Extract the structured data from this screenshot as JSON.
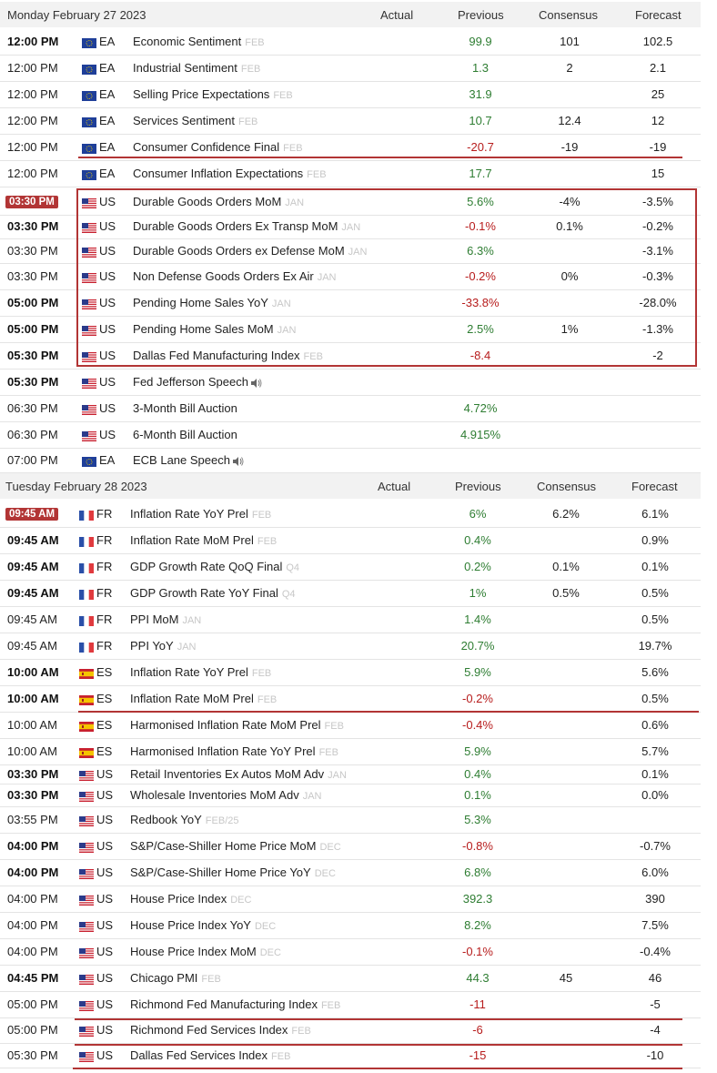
{
  "colors": {
    "positive": "#2e7d32",
    "negative": "#b71c1c",
    "highlight": "#b23535"
  },
  "days": [
    {
      "date": "Monday February 27 2023",
      "columns": {
        "actual": "Actual",
        "previous": "Previous",
        "consensus": "Consensus",
        "forecast": "Forecast"
      },
      "rows": [
        {
          "time": "12:00 PM",
          "bold": true,
          "country": "EA",
          "event": "Economic Sentiment",
          "ref": "FEB",
          "previous": "99.9",
          "prev_tone": "pos",
          "consensus": "101",
          "forecast": "102.5"
        },
        {
          "time": "12:00 PM",
          "country": "EA",
          "event": "Industrial Sentiment",
          "ref": "FEB",
          "previous": "1.3",
          "prev_tone": "pos",
          "consensus": "2",
          "forecast": "2.1"
        },
        {
          "time": "12:00 PM",
          "country": "EA",
          "event": "Selling Price Expectations",
          "ref": "FEB",
          "previous": "31.9",
          "prev_tone": "pos",
          "consensus": "",
          "forecast": "25"
        },
        {
          "time": "12:00 PM",
          "country": "EA",
          "event": "Services Sentiment",
          "ref": "FEB",
          "previous": "10.7",
          "prev_tone": "pos",
          "consensus": "12.4",
          "forecast": "12"
        },
        {
          "time": "12:00 PM",
          "country": "EA",
          "event": "Consumer Confidence Final",
          "ref": "FEB",
          "previous": "-20.7",
          "prev_tone": "neg",
          "consensus": "-19",
          "forecast": "-19"
        },
        {
          "time": "12:00 PM",
          "country": "EA",
          "event": "Consumer Inflation Expectations",
          "ref": "FEB",
          "previous": "17.7",
          "prev_tone": "pos",
          "consensus": "",
          "forecast": "15"
        },
        {
          "time": "03:30 PM",
          "badge": true,
          "country": "US",
          "event": "Durable Goods Orders MoM",
          "ref": "JAN",
          "previous": "5.6%",
          "prev_tone": "pos",
          "consensus": "-4%",
          "forecast": "-3.5%"
        },
        {
          "time": "03:30 PM",
          "bold": true,
          "country": "US",
          "event": "Durable Goods Orders Ex Transp MoM",
          "ref": "JAN",
          "previous": "-0.1%",
          "prev_tone": "neg",
          "consensus": "0.1%",
          "forecast": "-0.2%"
        },
        {
          "time": "03:30 PM",
          "country": "US",
          "event": "Durable Goods Orders ex Defense MoM",
          "ref": "JAN",
          "previous": "6.3%",
          "prev_tone": "pos",
          "consensus": "",
          "forecast": "-3.1%"
        },
        {
          "time": "03:30 PM",
          "country": "US",
          "event": "Non Defense Goods Orders Ex Air",
          "ref": "JAN",
          "previous": "-0.2%",
          "prev_tone": "neg",
          "consensus": "0%",
          "forecast": "-0.3%"
        },
        {
          "time": "05:00 PM",
          "bold": true,
          "country": "US",
          "event": "Pending Home Sales YoY",
          "ref": "JAN",
          "previous": "-33.8%",
          "prev_tone": "neg",
          "consensus": "",
          "forecast": "-28.0%"
        },
        {
          "time": "05:00 PM",
          "bold": true,
          "country": "US",
          "event": "Pending Home Sales MoM",
          "ref": "JAN",
          "previous": "2.5%",
          "prev_tone": "pos",
          "consensus": "1%",
          "forecast": "-1.3%"
        },
        {
          "time": "05:30 PM",
          "bold": true,
          "country": "US",
          "event": "Dallas Fed Manufacturing Index",
          "ref": "FEB",
          "previous": "-8.4",
          "prev_tone": "neg",
          "consensus": "",
          "forecast": "-2"
        },
        {
          "time": "05:30 PM",
          "bold": true,
          "country": "US",
          "event": "Fed Jefferson Speech",
          "ref": "",
          "speech": true,
          "previous": "",
          "prev_tone": "",
          "consensus": "",
          "forecast": ""
        },
        {
          "time": "06:30 PM",
          "country": "US",
          "event": "3-Month Bill Auction",
          "ref": "",
          "previous": "4.72%",
          "prev_tone": "pos",
          "consensus": "",
          "forecast": ""
        },
        {
          "time": "06:30 PM",
          "country": "US",
          "event": "6-Month Bill Auction",
          "ref": "",
          "previous": "4.915%",
          "prev_tone": "pos",
          "consensus": "",
          "forecast": ""
        },
        {
          "time": "07:00 PM",
          "country": "EA",
          "event": "ECB Lane Speech",
          "ref": "",
          "speech": true,
          "previous": "",
          "prev_tone": "",
          "consensus": "",
          "forecast": ""
        }
      ]
    },
    {
      "date": "Tuesday February 28 2023",
      "columns": {
        "actual": "Actual",
        "previous": "Previous",
        "consensus": "Consensus",
        "forecast": "Forecast"
      },
      "rows": [
        {
          "time": "09:45 AM",
          "badge": true,
          "country": "FR",
          "event": "Inflation Rate YoY Prel",
          "ref": "FEB",
          "previous": "6%",
          "prev_tone": "pos",
          "consensus": "6.2%",
          "forecast": "6.1%"
        },
        {
          "time": "09:45 AM",
          "bold": true,
          "country": "FR",
          "event": "Inflation Rate MoM Prel",
          "ref": "FEB",
          "previous": "0.4%",
          "prev_tone": "pos",
          "consensus": "",
          "forecast": "0.9%"
        },
        {
          "time": "09:45 AM",
          "bold": true,
          "country": "FR",
          "event": "GDP Growth Rate QoQ Final",
          "ref": "Q4",
          "previous": "0.2%",
          "prev_tone": "pos",
          "consensus": "0.1%",
          "forecast": "0.1%"
        },
        {
          "time": "09:45 AM",
          "bold": true,
          "country": "FR",
          "event": "GDP Growth Rate YoY Final",
          "ref": "Q4",
          "previous": "1%",
          "prev_tone": "pos",
          "consensus": "0.5%",
          "forecast": "0.5%"
        },
        {
          "time": "09:45 AM",
          "country": "FR",
          "event": "PPI MoM",
          "ref": "JAN",
          "previous": "1.4%",
          "prev_tone": "pos",
          "consensus": "",
          "forecast": "0.5%"
        },
        {
          "time": "09:45 AM",
          "country": "FR",
          "event": "PPI YoY",
          "ref": "JAN",
          "previous": "20.7%",
          "prev_tone": "pos",
          "consensus": "",
          "forecast": "19.7%"
        },
        {
          "time": "10:00 AM",
          "bold": true,
          "country": "ES",
          "event": "Inflation Rate YoY Prel",
          "ref": "FEB",
          "previous": "5.9%",
          "prev_tone": "pos",
          "consensus": "",
          "forecast": "5.6%"
        },
        {
          "time": "10:00 AM",
          "bold": true,
          "country": "ES",
          "event": "Inflation Rate MoM Prel",
          "ref": "FEB",
          "previous": "-0.2%",
          "prev_tone": "neg",
          "consensus": "",
          "forecast": "0.5%"
        },
        {
          "time": "10:00 AM",
          "country": "ES",
          "event": "Harmonised Inflation Rate MoM Prel",
          "ref": "FEB",
          "previous": "-0.4%",
          "prev_tone": "neg",
          "consensus": "",
          "forecast": "0.6%"
        },
        {
          "time": "10:00 AM",
          "country": "ES",
          "event": "Harmonised Inflation Rate YoY Prel",
          "ref": "FEB",
          "previous": "5.9%",
          "prev_tone": "pos",
          "consensus": "",
          "forecast": "5.7%"
        },
        {
          "time": "03:30 PM",
          "bold": true,
          "country": "US",
          "event": "Retail Inventories Ex Autos MoM Adv",
          "ref": "JAN",
          "previous": "0.4%",
          "prev_tone": "pos",
          "consensus": "",
          "forecast": "0.1%"
        },
        {
          "time": "03:30 PM",
          "bold": true,
          "country": "US",
          "event": "Wholesale Inventories MoM Adv",
          "ref": "JAN",
          "previous": "0.1%",
          "prev_tone": "pos",
          "consensus": "",
          "forecast": "0.0%"
        },
        {
          "time": "03:55 PM",
          "country": "US",
          "event": "Redbook YoY",
          "ref": "FEB/25",
          "previous": "5.3%",
          "prev_tone": "pos",
          "consensus": "",
          "forecast": ""
        },
        {
          "time": "04:00 PM",
          "bold": true,
          "country": "US",
          "event": "S&P/Case-Shiller Home Price MoM",
          "ref": "DEC",
          "previous": "-0.8%",
          "prev_tone": "neg",
          "consensus": "",
          "forecast": "-0.7%"
        },
        {
          "time": "04:00 PM",
          "bold": true,
          "country": "US",
          "event": "S&P/Case-Shiller Home Price YoY",
          "ref": "DEC",
          "previous": "6.8%",
          "prev_tone": "pos",
          "consensus": "",
          "forecast": "6.0%"
        },
        {
          "time": "04:00 PM",
          "country": "US",
          "event": "House Price Index",
          "ref": "DEC",
          "previous": "392.3",
          "prev_tone": "pos",
          "consensus": "",
          "forecast": "390"
        },
        {
          "time": "04:00 PM",
          "country": "US",
          "event": "House Price Index YoY",
          "ref": "DEC",
          "previous": "8.2%",
          "prev_tone": "pos",
          "consensus": "",
          "forecast": "7.5%"
        },
        {
          "time": "04:00 PM",
          "country": "US",
          "event": "House Price Index MoM",
          "ref": "DEC",
          "previous": "-0.1%",
          "prev_tone": "neg",
          "consensus": "",
          "forecast": "-0.4%"
        },
        {
          "time": "04:45 PM",
          "bold": true,
          "country": "US",
          "event": "Chicago PMI",
          "ref": "FEB",
          "previous": "44.3",
          "prev_tone": "pos",
          "consensus": "45",
          "forecast": "46"
        },
        {
          "time": "05:00 PM",
          "country": "US",
          "event": "Richmond Fed Manufacturing Index",
          "ref": "FEB",
          "previous": "-11",
          "prev_tone": "neg",
          "consensus": "",
          "forecast": "-5"
        },
        {
          "time": "05:00 PM",
          "country": "US",
          "event": "Richmond Fed Services Index",
          "ref": "FEB",
          "previous": "-6",
          "prev_tone": "neg",
          "consensus": "",
          "forecast": "-4"
        },
        {
          "time": "05:30 PM",
          "country": "US",
          "event": "Dallas Fed Services Index",
          "ref": "FEB",
          "previous": "-15",
          "prev_tone": "neg",
          "consensus": "",
          "forecast": "-10"
        }
      ]
    }
  ]
}
